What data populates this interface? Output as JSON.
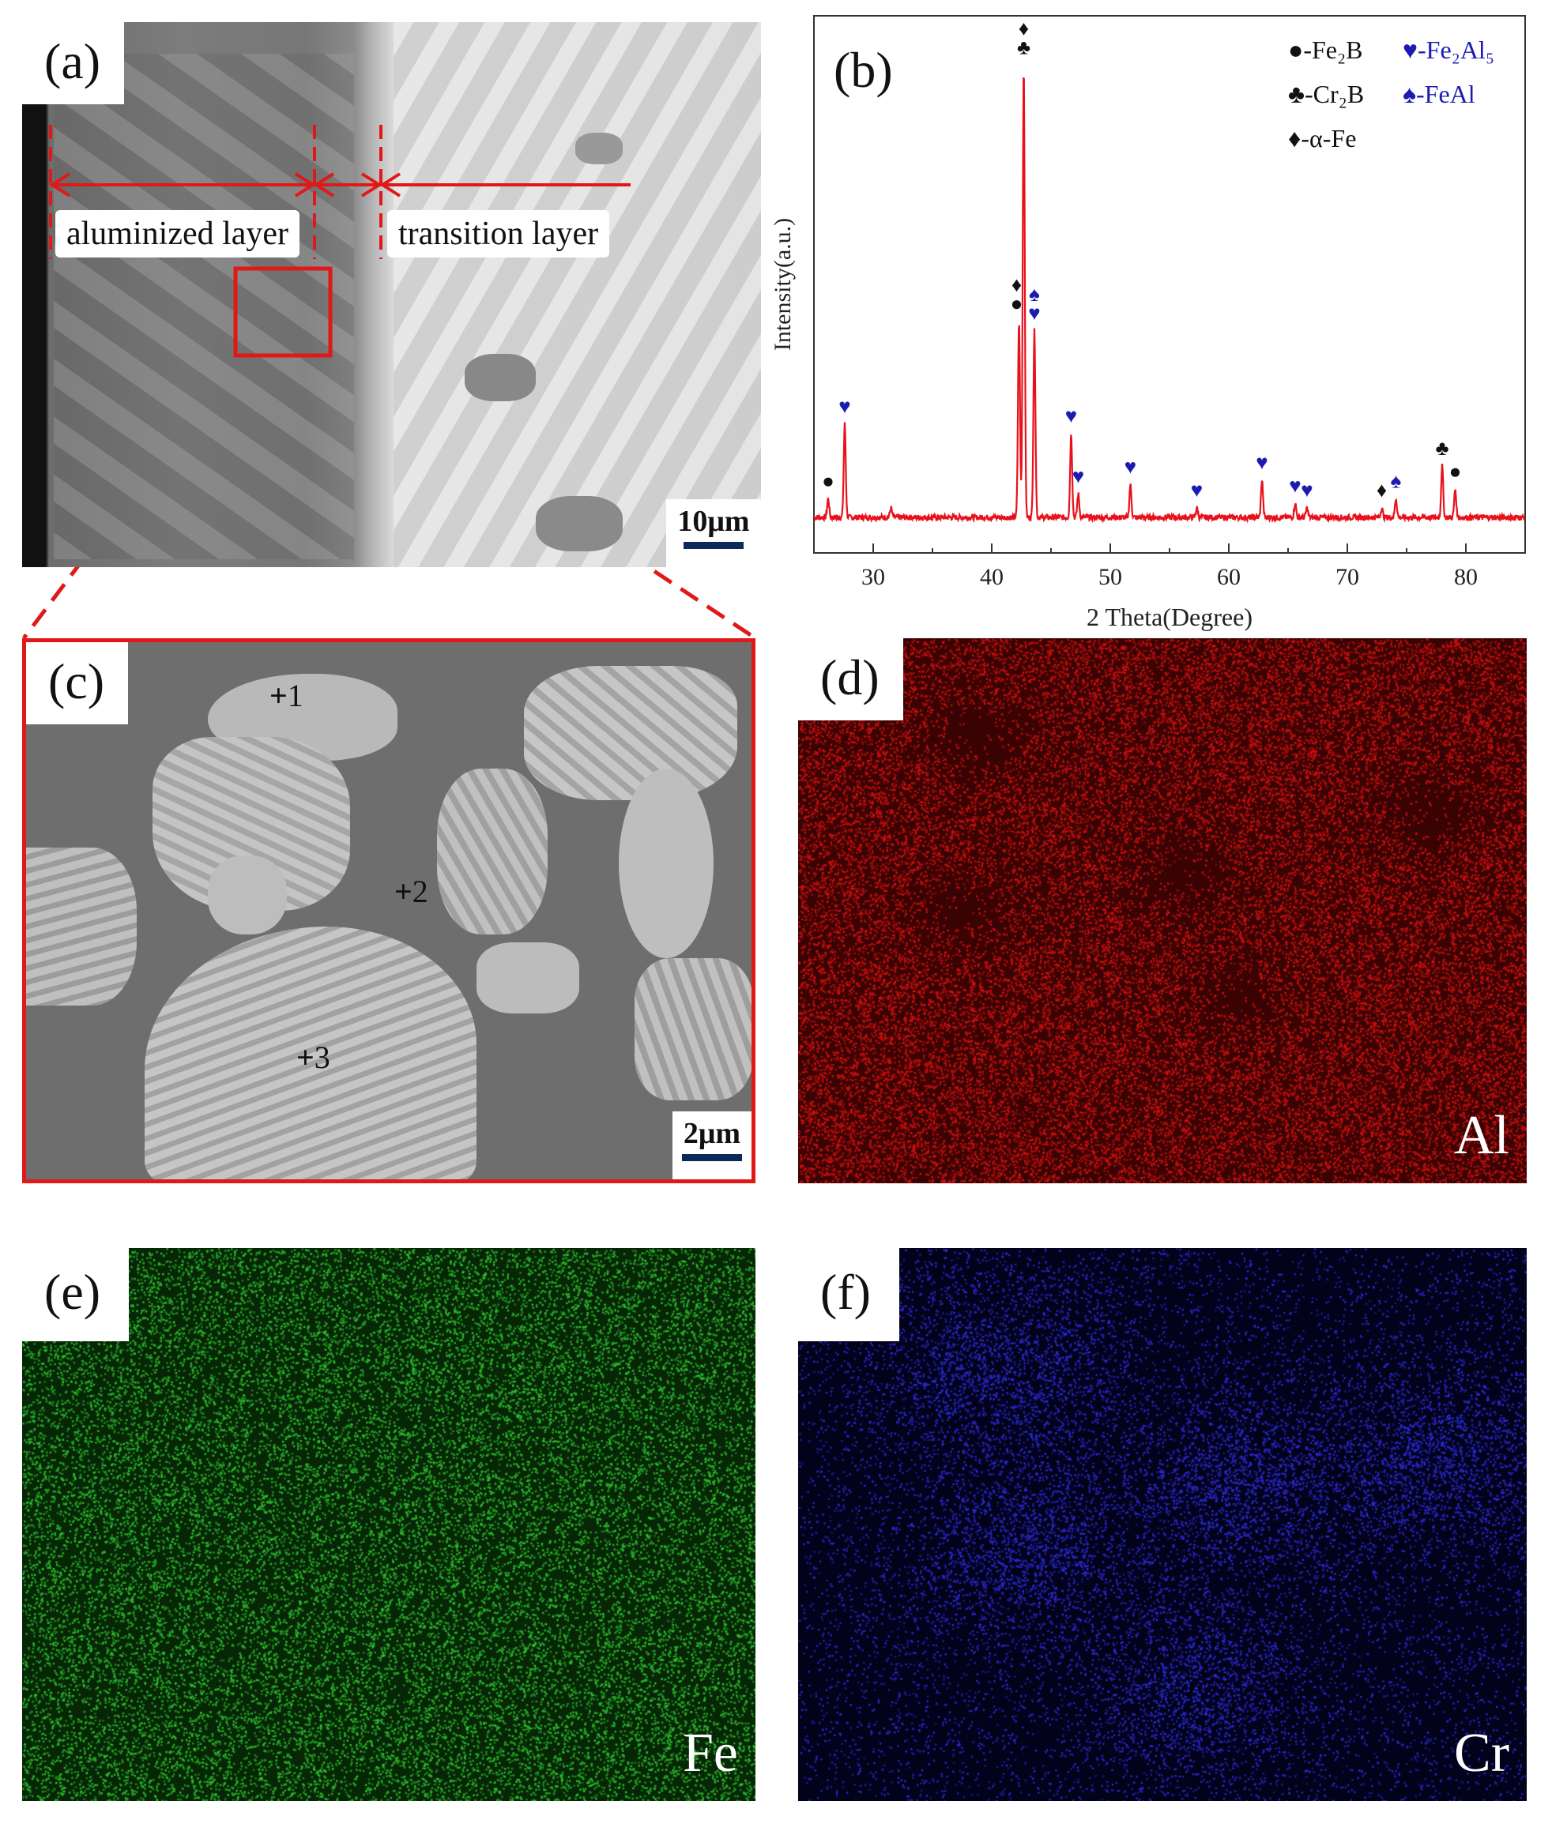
{
  "panels": {
    "a": {
      "label": "(a)",
      "zone1": "aluminized layer",
      "zone2": "transition layer",
      "scale": "10μm"
    },
    "b": {
      "label": "(b)"
    },
    "c": {
      "label": "(c)",
      "scale": "2μm",
      "points": [
        "1",
        "2",
        "3"
      ]
    },
    "d": {
      "label": "(d)",
      "element": "Al",
      "color": "#d01010"
    },
    "e": {
      "label": "(e)",
      "element": "Fe",
      "color": "#2fc02f"
    },
    "f": {
      "label": "(f)",
      "element": "Cr",
      "color": "#2b2bd8"
    }
  },
  "chart_data": {
    "type": "line",
    "title": "",
    "xlabel": "2 Theta(Degree)",
    "ylabel": "Intensity(a.u.)",
    "xlim": [
      25,
      85
    ],
    "xticks": [
      30,
      40,
      50,
      60,
      70,
      80
    ],
    "grid": false,
    "series": [
      {
        "color": "#e8111b",
        "peaks": [
          {
            "x": 26.2,
            "h": 0.04
          },
          {
            "x": 27.6,
            "h": 0.2
          },
          {
            "x": 31.5,
            "h": 0.02
          },
          {
            "x": 42.3,
            "h": 0.42
          },
          {
            "x": 42.7,
            "h": 0.97
          },
          {
            "x": 43.6,
            "h": 0.4
          },
          {
            "x": 46.7,
            "h": 0.18
          },
          {
            "x": 47.3,
            "h": 0.05
          },
          {
            "x": 51.7,
            "h": 0.07
          },
          {
            "x": 57.3,
            "h": 0.02
          },
          {
            "x": 62.8,
            "h": 0.08
          },
          {
            "x": 65.6,
            "h": 0.03
          },
          {
            "x": 66.6,
            "h": 0.02
          },
          {
            "x": 72.9,
            "h": 0.02
          },
          {
            "x": 74.1,
            "h": 0.04
          },
          {
            "x": 78.0,
            "h": 0.11
          },
          {
            "x": 79.1,
            "h": 0.06
          }
        ]
      }
    ],
    "legend": {
      "placement": "top-right",
      "entries": [
        {
          "symbol": "●",
          "text": "-Fe₂B",
          "color": "#111111"
        },
        {
          "symbol": "♥",
          "text": "-Fe₂Al₅",
          "color": "#1b1bb0"
        },
        {
          "symbol": "♣",
          "text": "-Cr₂B",
          "color": "#111111"
        },
        {
          "symbol": "♠",
          "text": "-FeAl",
          "color": "#1b1bb0"
        },
        {
          "symbol": "♦",
          "text": "-α-Fe",
          "color": "#111111"
        }
      ]
    },
    "annotations": [
      {
        "x": 26.2,
        "h": 0.04,
        "symbols": "●"
      },
      {
        "x": 27.6,
        "h": 0.2,
        "symbols": "♥"
      },
      {
        "x": 42.1,
        "h": 0.42,
        "symbols": "♦●"
      },
      {
        "x": 42.7,
        "h": 0.97,
        "symbols": "♦♣"
      },
      {
        "x": 43.6,
        "h": 0.4,
        "symbols": "♠♥"
      },
      {
        "x": 46.7,
        "h": 0.18,
        "symbols": "♥"
      },
      {
        "x": 47.3,
        "h": 0.05,
        "symbols": "♥"
      },
      {
        "x": 51.7,
        "h": 0.07,
        "symbols": "♥"
      },
      {
        "x": 57.3,
        "h": 0.02,
        "symbols": "♥"
      },
      {
        "x": 62.8,
        "h": 0.08,
        "symbols": "♥"
      },
      {
        "x": 65.6,
        "h": 0.03,
        "symbols": "♥"
      },
      {
        "x": 66.6,
        "h": 0.02,
        "symbols": "♥"
      },
      {
        "x": 72.9,
        "h": 0.02,
        "symbols": "♦"
      },
      {
        "x": 74.1,
        "h": 0.04,
        "symbols": "♠"
      },
      {
        "x": 78.0,
        "h": 0.11,
        "symbols": "♣"
      },
      {
        "x": 79.1,
        "h": 0.06,
        "symbols": "●"
      }
    ]
  }
}
